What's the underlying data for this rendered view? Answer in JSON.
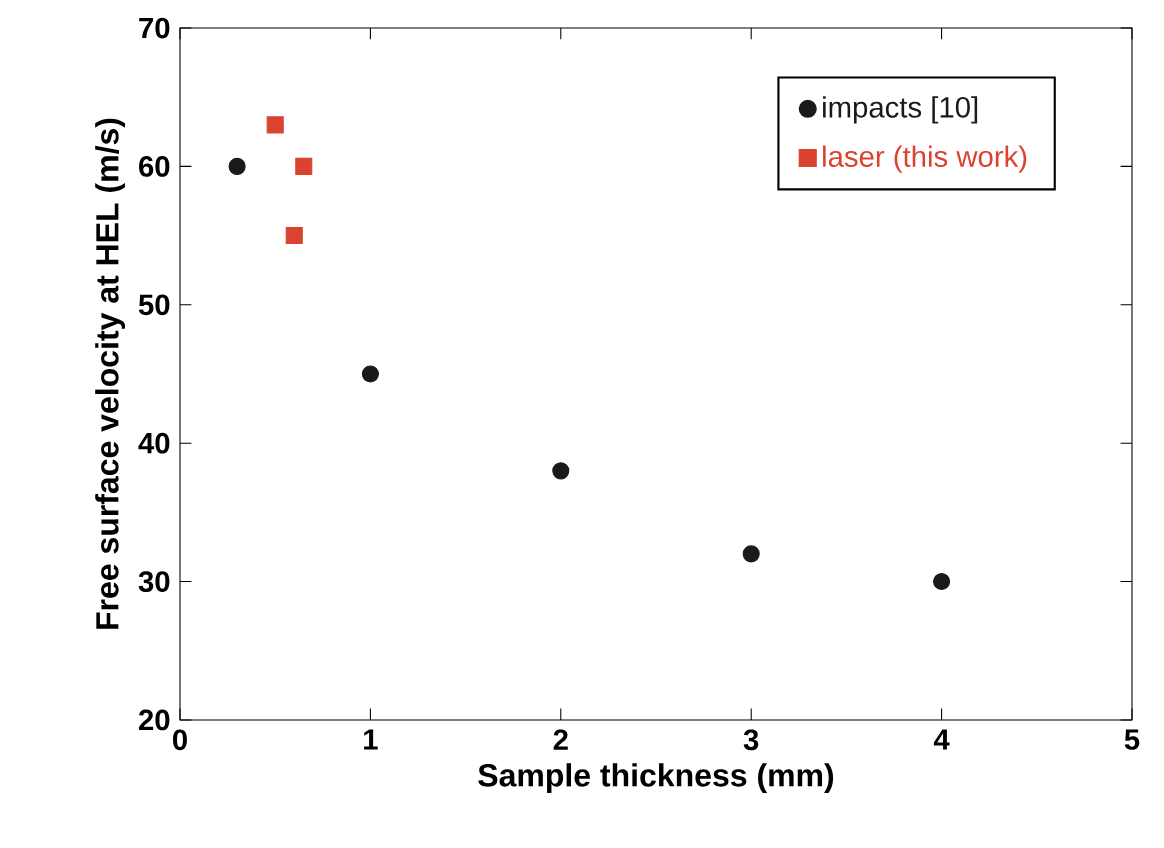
{
  "chart_data": {
    "type": "scatter",
    "xlabel": "Sample thickness (mm)",
    "ylabel": "Free surface velocity at HEL (m/s)",
    "xlim": [
      0,
      5
    ],
    "ylim": [
      20,
      70
    ],
    "xticks": [
      0,
      1,
      2,
      3,
      4,
      5
    ],
    "yticks": [
      20,
      30,
      40,
      50,
      60,
      70
    ],
    "legend": "top right",
    "grid": false,
    "series": [
      {
        "name": "impacts [10]",
        "color": "#1a1a1a",
        "marker": "circle",
        "x": [
          0.3,
          1,
          2,
          3,
          4
        ],
        "values": [
          60,
          45,
          38,
          32,
          30
        ]
      },
      {
        "name": "laser (this work)",
        "color": "#d9432f",
        "marker": "square",
        "x": [
          0.5,
          0.65,
          0.6
        ],
        "values": [
          63,
          60,
          55
        ]
      }
    ]
  }
}
